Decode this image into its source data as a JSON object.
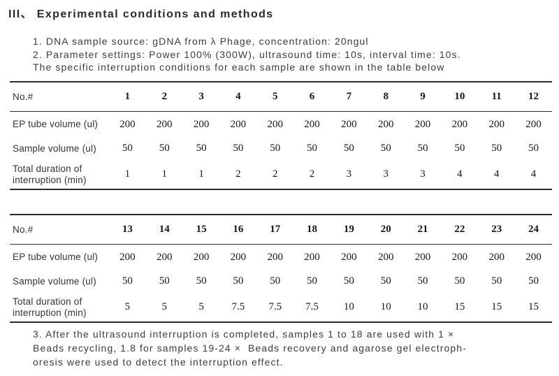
{
  "title": "III、 Experimental conditions and methods",
  "intro": {
    "line1": "1. DNA sample source: gDNA from λ Phage, concentration: 20ngul",
    "line2": "2. Parameter settings: Power 100% (300W), ultrasound time: 10s, interval time: 10s.",
    "line3": "The specific interruption conditions for each sample are shown in the table below"
  },
  "tables": [
    {
      "header": {
        "label": "No.#",
        "values": [
          "1",
          "2",
          "3",
          "4",
          "5",
          "6",
          "7",
          "8",
          "9",
          "10",
          "11",
          "12"
        ]
      },
      "rows": [
        {
          "label": "EP tube volume (ul)",
          "values": [
            "200",
            "200",
            "200",
            "200",
            "200",
            "200",
            "200",
            "200",
            "200",
            "200",
            "200",
            "200"
          ]
        },
        {
          "label": "Sample volume (ul)",
          "values": [
            "50",
            "50",
            "50",
            "50",
            "50",
            "50",
            "50",
            "50",
            "50",
            "50",
            "50",
            "50"
          ]
        },
        {
          "label": "Total duration of interruption (min)",
          "values": [
            "1",
            "1",
            "1",
            "2",
            "2",
            "2",
            "3",
            "3",
            "3",
            "4",
            "4",
            "4"
          ]
        }
      ]
    },
    {
      "header": {
        "label": "No.#",
        "values": [
          "13",
          "14",
          "15",
          "16",
          "17",
          "18",
          "19",
          "20",
          "21",
          "22",
          "23",
          "24"
        ]
      },
      "rows": [
        {
          "label": "EP tube volume (ul)",
          "values": [
            "200",
            "200",
            "200",
            "200",
            "200",
            "200",
            "200",
            "200",
            "200",
            "200",
            "200",
            "200"
          ]
        },
        {
          "label": "Sample volume (ul)",
          "values": [
            "50",
            "50",
            "50",
            "50",
            "50",
            "50",
            "50",
            "50",
            "50",
            "50",
            "50",
            "50"
          ]
        },
        {
          "label": "Total duration of interruption (min)",
          "values": [
            "5",
            "5",
            "5",
            "7.5",
            "7.5",
            "7.5",
            "10",
            "10",
            "10",
            "15",
            "15",
            "15"
          ]
        }
      ]
    }
  ],
  "note": {
    "line1": "3. After the ultrasound interruption is completed, samples 1 to 18 are used with 1 ×",
    "line2": "Beads recycling, 1.8 for samples 19-24 ×  Beads recovery and agarose gel electroph-",
    "line3": "oresis were used to detect the interruption effect."
  },
  "colors": {
    "text": "#3c3c3c",
    "numbers": "#161616",
    "rule": "#2c2c2c",
    "background": "#ffffff"
  }
}
